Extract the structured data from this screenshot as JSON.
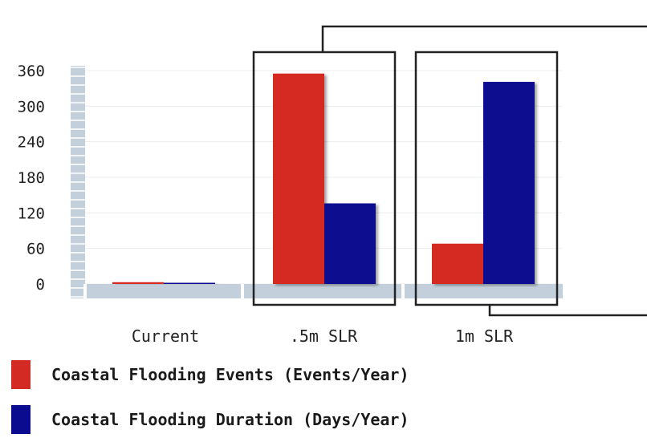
{
  "chart_data": {
    "type": "bar",
    "categories": [
      "Current",
      ".5m SLR",
      "1m SLR"
    ],
    "series": [
      {
        "name": "Coastal Flooding Events (Events/Year)",
        "color": "#d42a24",
        "values": [
          3,
          355,
          68
        ]
      },
      {
        "name": "Coastal Flooding Duration (Days/Year)",
        "color": "#0b0b8f",
        "values": [
          2,
          136,
          341
        ]
      }
    ],
    "yticks": [
      0,
      60,
      120,
      180,
      240,
      300,
      360
    ],
    "ylim": [
      0,
      360
    ],
    "title": "",
    "xlabel": "",
    "ylabel": "",
    "grid": true,
    "legend_position": "bottom",
    "highlighted_categories": [
      ".5m SLR",
      "1m SLR"
    ],
    "axis_color": "#c3d0dc"
  }
}
